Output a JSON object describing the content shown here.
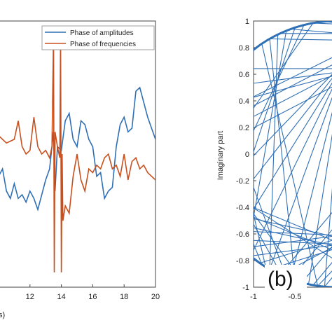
{
  "chart_data": [
    {
      "type": "line",
      "panel": "left",
      "xlim": [
        10,
        20
      ],
      "x_ticks": [
        "12",
        "14",
        "16",
        "18",
        "20"
      ],
      "xlabel_fragment": "s)",
      "grid": false,
      "legend_position": "top-right",
      "series": [
        {
          "name": "Phase of amplitudes",
          "color": "#2f6fb5",
          "x": [
            10.0,
            10.25,
            10.5,
            10.75,
            11.0,
            11.25,
            11.5,
            11.75,
            12.0,
            12.25,
            12.5,
            12.75,
            13.0,
            13.25,
            13.5,
            13.6,
            13.75,
            14.0,
            14.25,
            14.5,
            14.75,
            15.0,
            15.25,
            15.5,
            15.75,
            16.0,
            16.25,
            16.5,
            16.75,
            17.0,
            17.25,
            17.5,
            17.75,
            18.0,
            18.25,
            18.5,
            18.75,
            19.0,
            19.25,
            19.5,
            19.75,
            20.0
          ],
          "y": [
            -0.3,
            -0.2,
            -0.5,
            -0.6,
            -0.4,
            -0.6,
            -0.55,
            -0.65,
            -0.5,
            -0.6,
            -0.75,
            -0.55,
            -0.35,
            -0.2,
            0.3,
            -0.5,
            0.1,
            0.05,
            0.45,
            0.55,
            0.2,
            0.1,
            0.45,
            0.4,
            0.2,
            0.1,
            -0.3,
            -0.25,
            -0.6,
            -0.5,
            -0.45,
            0.1,
            0.4,
            0.5,
            0.3,
            0.35,
            0.85,
            0.9,
            0.7,
            0.5,
            0.35,
            0.2
          ]
        },
        {
          "name": "Phase of frequencies",
          "color": "#c8501e",
          "x": [
            10.0,
            10.5,
            11.0,
            11.25,
            11.5,
            11.75,
            12.0,
            12.25,
            12.5,
            12.75,
            13.0,
            13.25,
            13.4,
            13.5,
            13.55,
            13.6,
            13.75,
            13.9,
            13.95,
            14.0,
            14.05,
            14.1,
            14.25,
            14.5,
            14.75,
            15.0,
            15.25,
            15.5,
            15.75,
            16.0,
            16.25,
            16.5,
            16.75,
            17.0,
            17.25,
            17.5,
            17.75,
            18.0,
            18.25,
            18.5,
            18.75,
            19.0,
            19.25,
            19.5,
            19.75,
            20.0
          ],
          "y": [
            0.25,
            0.15,
            0.2,
            0.45,
            0.1,
            0.0,
            0.05,
            0.5,
            0.1,
            0.0,
            0.05,
            -0.05,
            0.1,
            4.0,
            -4.0,
            0.3,
            0.1,
            -0.05,
            4.0,
            -4.0,
            0.0,
            -0.9,
            -0.7,
            -0.8,
            -0.3,
            0.0,
            -0.35,
            -0.5,
            -0.2,
            -0.25,
            -0.15,
            -0.2,
            -0.05,
            0.0,
            -0.2,
            -0.15,
            -0.3,
            0.0,
            -0.35,
            -0.1,
            -0.05,
            -0.2,
            -0.15,
            -0.25,
            -0.3,
            -0.35
          ]
        }
      ]
    },
    {
      "type": "line",
      "panel": "right",
      "panel_label": "(b)",
      "ylabel": "Imaginary part",
      "ylim": [
        -1,
        1
      ],
      "y_ticks": [
        "1",
        "0.8",
        "0.6",
        "0.4",
        "0.2",
        "0",
        "-0.2",
        "-0.4",
        "-0.6",
        "-0.8",
        "-1"
      ],
      "x_ticks": [
        "-1",
        "-0.5"
      ],
      "grid": false,
      "series": [
        {
          "color": "#2f6fb5",
          "description_free_shape": "unit circle with chords",
          "chord_angle_pairs_deg": [
            [
              72,
              200
            ],
            [
              74,
              210
            ],
            [
              76,
              220
            ],
            [
              78,
              230
            ],
            [
              80,
              240
            ],
            [
              82,
              250
            ],
            [
              84,
              258
            ],
            [
              86,
              265
            ],
            [
              100,
              190
            ],
            [
              104,
              205
            ],
            [
              108,
              215
            ],
            [
              112,
              228
            ],
            [
              116,
              240
            ],
            [
              120,
              252
            ],
            [
              124,
              262
            ],
            [
              128,
              185
            ],
            [
              132,
              196
            ],
            [
              136,
              206
            ],
            [
              140,
              218
            ],
            [
              144,
              228
            ],
            [
              148,
              238
            ],
            [
              152,
              248
            ],
            [
              156,
              200
            ],
            [
              160,
              212
            ],
            [
              164,
              224
            ],
            [
              168,
              236
            ],
            [
              172,
              246
            ],
            [
              176,
              256
            ],
            [
              55,
              180
            ],
            [
              60,
              175
            ],
            [
              65,
              170
            ],
            [
              68,
              165
            ],
            [
              50,
              160
            ],
            [
              45,
              150
            ],
            [
              40,
              140
            ],
            [
              70,
              90
            ],
            [
              72,
              95
            ],
            [
              75,
              100
            ],
            [
              60,
              110
            ],
            [
              65,
              115
            ],
            [
              58,
              120
            ],
            [
              30,
              250
            ],
            [
              25,
              255
            ],
            [
              20,
              260
            ],
            [
              15,
              265
            ],
            [
              10,
              262
            ],
            [
              35,
              245
            ],
            [
              195,
              300
            ],
            [
              205,
              310
            ],
            [
              215,
              320
            ],
            [
              225,
              330
            ],
            [
              235,
              340
            ],
            [
              245,
              350
            ],
            [
              190,
              285
            ],
            [
              200,
              295
            ],
            [
              210,
              305
            ],
            [
              220,
              315
            ],
            [
              230,
              325
            ],
            [
              240,
              335
            ]
          ]
        }
      ]
    }
  ]
}
